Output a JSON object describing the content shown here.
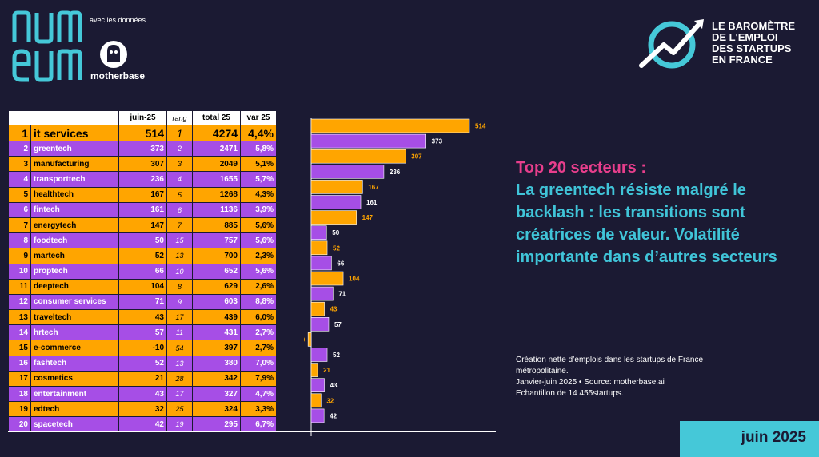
{
  "brand": {
    "numeum": "numeum",
    "avec": "avec les données",
    "motherbase": "motherbase"
  },
  "barometre": {
    "l1": "LE BAROMÈTRE",
    "l2": "DE L'EMPLOI",
    "l3": "DES STARTUPS",
    "l4": "EN FRANCE"
  },
  "table": {
    "headers": [
      "juin-25",
      "rang",
      "total 25",
      "var 25"
    ],
    "rows": [
      {
        "rank": "1",
        "name": "it services",
        "juin": "514",
        "rang": "1",
        "total": "4274",
        "var": "4,4%"
      },
      {
        "rank": "2",
        "name": "greentech",
        "juin": "373",
        "rang": "2",
        "total": "2471",
        "var": "5,8%"
      },
      {
        "rank": "3",
        "name": "manufacturing",
        "juin": "307",
        "rang": "3",
        "total": "2049",
        "var": "5,1%"
      },
      {
        "rank": "4",
        "name": "transporttech",
        "juin": "236",
        "rang": "4",
        "total": "1655",
        "var": "5,7%"
      },
      {
        "rank": "5",
        "name": "healthtech",
        "juin": "167",
        "rang": "5",
        "total": "1268",
        "var": "4,3%"
      },
      {
        "rank": "6",
        "name": "fintech",
        "juin": "161",
        "rang": "6",
        "total": "1136",
        "var": "3,9%"
      },
      {
        "rank": "7",
        "name": "energytech",
        "juin": "147",
        "rang": "7",
        "total": "885",
        "var": "5,6%"
      },
      {
        "rank": "8",
        "name": "foodtech",
        "juin": "50",
        "rang": "15",
        "total": "757",
        "var": "5,6%"
      },
      {
        "rank": "9",
        "name": "martech",
        "juin": "52",
        "rang": "13",
        "total": "700",
        "var": "2,3%"
      },
      {
        "rank": "10",
        "name": "proptech",
        "juin": "66",
        "rang": "10",
        "total": "652",
        "var": "5,6%"
      },
      {
        "rank": "11",
        "name": "deeptech",
        "juin": "104",
        "rang": "8",
        "total": "629",
        "var": "2,6%"
      },
      {
        "rank": "12",
        "name": "consumer services",
        "juin": "71",
        "rang": "9",
        "total": "603",
        "var": "8,8%"
      },
      {
        "rank": "13",
        "name": "traveltech",
        "juin": "43",
        "rang": "17",
        "total": "439",
        "var": "6,0%"
      },
      {
        "rank": "14",
        "name": "hrtech",
        "juin": "57",
        "rang": "11",
        "total": "431",
        "var": "2,7%"
      },
      {
        "rank": "15",
        "name": "e-commerce",
        "juin": "-10",
        "rang": "54",
        "total": "397",
        "var": "2,7%"
      },
      {
        "rank": "16",
        "name": "fashtech",
        "juin": "52",
        "rang": "13",
        "total": "380",
        "var": "7,0%"
      },
      {
        "rank": "17",
        "name": "cosmetics",
        "juin": "21",
        "rang": "28",
        "total": "342",
        "var": "7,9%"
      },
      {
        "rank": "18",
        "name": "entertainment",
        "juin": "43",
        "rang": "17",
        "total": "327",
        "var": "4,7%"
      },
      {
        "rank": "19",
        "name": "edtech",
        "juin": "32",
        "rang": "25",
        "total": "324",
        "var": "3,3%"
      },
      {
        "rank": "20",
        "name": "spacetech",
        "juin": "42",
        "rang": "19",
        "total": "295",
        "var": "6,7%"
      }
    ]
  },
  "chart_data": {
    "type": "bar",
    "orientation": "horizontal",
    "categories": [
      "it services",
      "greentech",
      "manufacturing",
      "transporttech",
      "healthtech",
      "fintech",
      "energytech",
      "foodtech",
      "martech",
      "proptech",
      "deeptech",
      "consumer services",
      "traveltech",
      "hrtech",
      "e-commerce",
      "fashtech",
      "cosmetics",
      "entertainment",
      "edtech",
      "spacetech"
    ],
    "values": [
      514,
      373,
      307,
      236,
      167,
      161,
      147,
      50,
      52,
      66,
      104,
      71,
      43,
      57,
      -10,
      52,
      21,
      43,
      32,
      42
    ],
    "labels": [
      "514",
      "373",
      "307",
      "236",
      "167",
      "161",
      "147",
      "50",
      "52",
      "66",
      "104",
      "71",
      "43",
      "57",
      "-10",
      "52",
      "21",
      "43",
      "32",
      "42"
    ],
    "colors": [
      "#ffa500",
      "#a64ee6"
    ]
  },
  "headline": {
    "line1": "Top 20 secteurs :",
    "line2": "La greentech résiste malgré le backlash : les transitions sont créatrices de valeur. Volatilité importante dans d’autres secteurs"
  },
  "source": {
    "l1": "Création nette d’emplois dans les startups de France métropolitaine.",
    "l2": "Janvier-juin 2025 • Source: motherbase.ai",
    "l3": "Echantillon de 14 455startups."
  },
  "date_label": "juin 2025",
  "colors": {
    "background": "#1b1a33",
    "orange": "#ffa500",
    "purple": "#a64ee6",
    "pink": "#e83e8c",
    "teal": "#40c4d8"
  }
}
